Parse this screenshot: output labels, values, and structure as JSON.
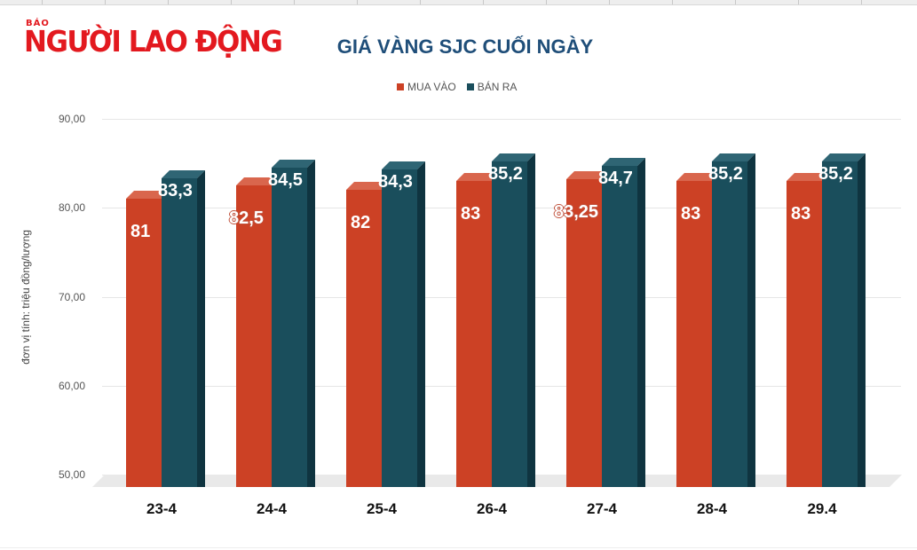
{
  "brand": {
    "prefix": "BÁO",
    "name": "NGƯỜI LAO ĐỘNG",
    "color": "#e3191f"
  },
  "chart_data": {
    "type": "bar",
    "title": "GIÁ VÀNG SJC CUỐI NGÀY",
    "xlabel": "",
    "ylabel": "đơn vị tính: triệu đồng/lượng",
    "ylim": [
      50,
      90
    ],
    "yticks": [
      "90,00",
      "80,00",
      "70,00",
      "60,00",
      "50,00"
    ],
    "grid": true,
    "legend_position": "top",
    "categories": [
      "23-4",
      "24-4",
      "25-4",
      "26-4",
      "27-4",
      "28-4",
      "29.4"
    ],
    "series": [
      {
        "name": "MUA VÀO",
        "color": "#cc4125",
        "values": [
          81,
          82.5,
          82,
          83,
          83.25,
          83,
          83
        ],
        "labels": [
          "81",
          "82,5",
          "82",
          "83",
          "83,25",
          "83",
          "83"
        ]
      },
      {
        "name": "BÁN RA",
        "color": "#1a4e5c",
        "values": [
          83.3,
          84.5,
          84.3,
          85.2,
          84.7,
          85.2,
          85.2
        ],
        "labels": [
          "83,3",
          "84,5",
          "84,3",
          "85,2",
          "84,7",
          "85,2",
          "85,2"
        ]
      }
    ]
  }
}
